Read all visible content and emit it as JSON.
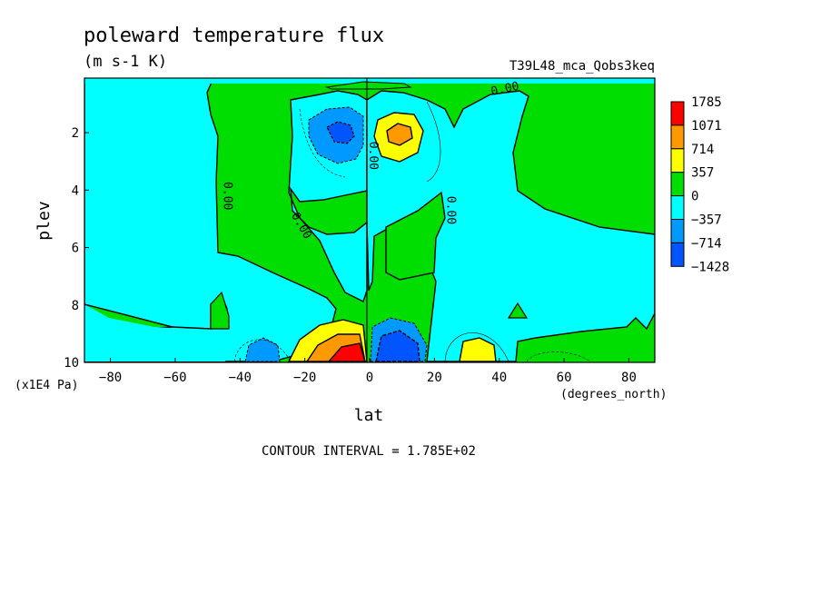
{
  "chart_data": {
    "type": "heatmap",
    "title": "poleward temperature flux",
    "units": "(m s-1 K)",
    "dataset": "T39L48_mca_Qobs3keq",
    "xlabel": "lat",
    "ylabel": "plev",
    "x_units": "(degrees_north)",
    "y_units": "(x1E4 Pa)",
    "footer": "CONTOUR INTERVAL = 1.785E+02",
    "xlim": [
      -88,
      88
    ],
    "ylim": [
      10,
      0.1
    ],
    "x_ticks": [
      {
        "value": -80,
        "label": "-80"
      },
      {
        "value": -60,
        "label": "-60"
      },
      {
        "value": -40,
        "label": "-40"
      },
      {
        "value": -20,
        "label": "-20"
      },
      {
        "value": 0,
        "label": "0"
      },
      {
        "value": 20,
        "label": "20"
      },
      {
        "value": 40,
        "label": "40"
      },
      {
        "value": 60,
        "label": "60"
      },
      {
        "value": 80,
        "label": "80"
      }
    ],
    "y_ticks": [
      {
        "value": 2,
        "label": "2"
      },
      {
        "value": 4,
        "label": "4"
      },
      {
        "value": 6,
        "label": "6"
      },
      {
        "value": 8,
        "label": "8"
      },
      {
        "value": 10,
        "label": "10"
      }
    ],
    "colorbar": [
      {
        "label": "1785",
        "color": "#ff0000"
      },
      {
        "label": "1071",
        "color": "#ff9900"
      },
      {
        "label": "714",
        "color": "#ffff00"
      },
      {
        "label": "357",
        "color": "#00dd00"
      },
      {
        "label": "0",
        "color": "#00ffff"
      },
      {
        "label": "-357",
        "color": "#0099ff"
      },
      {
        "label": "-714",
        "color": "#0055ff"
      },
      {
        "label": "-1428",
        "color": "#0055ff"
      }
    ],
    "colors": {
      "pos_low": "#00dd00",
      "neg_low": "#00ffff",
      "pos_mid": "#ffff00",
      "pos_high": "#ff9900",
      "pos_max": "#ff0000",
      "neg_mid": "#0099ff",
      "neg_high": "#0055ff"
    },
    "contour_labels": [
      {
        "text": "0.00",
        "lat": 42,
        "plev": 0.6
      },
      {
        "text": "0.00",
        "lat": 0,
        "plev": 2.8
      },
      {
        "text": "0.00",
        "lat": -45,
        "plev": 4.2
      },
      {
        "text": "0.00",
        "lat": -22,
        "plev": 5.3
      },
      {
        "text": "0.00",
        "lat": 24,
        "plev": 4.7
      }
    ]
  }
}
